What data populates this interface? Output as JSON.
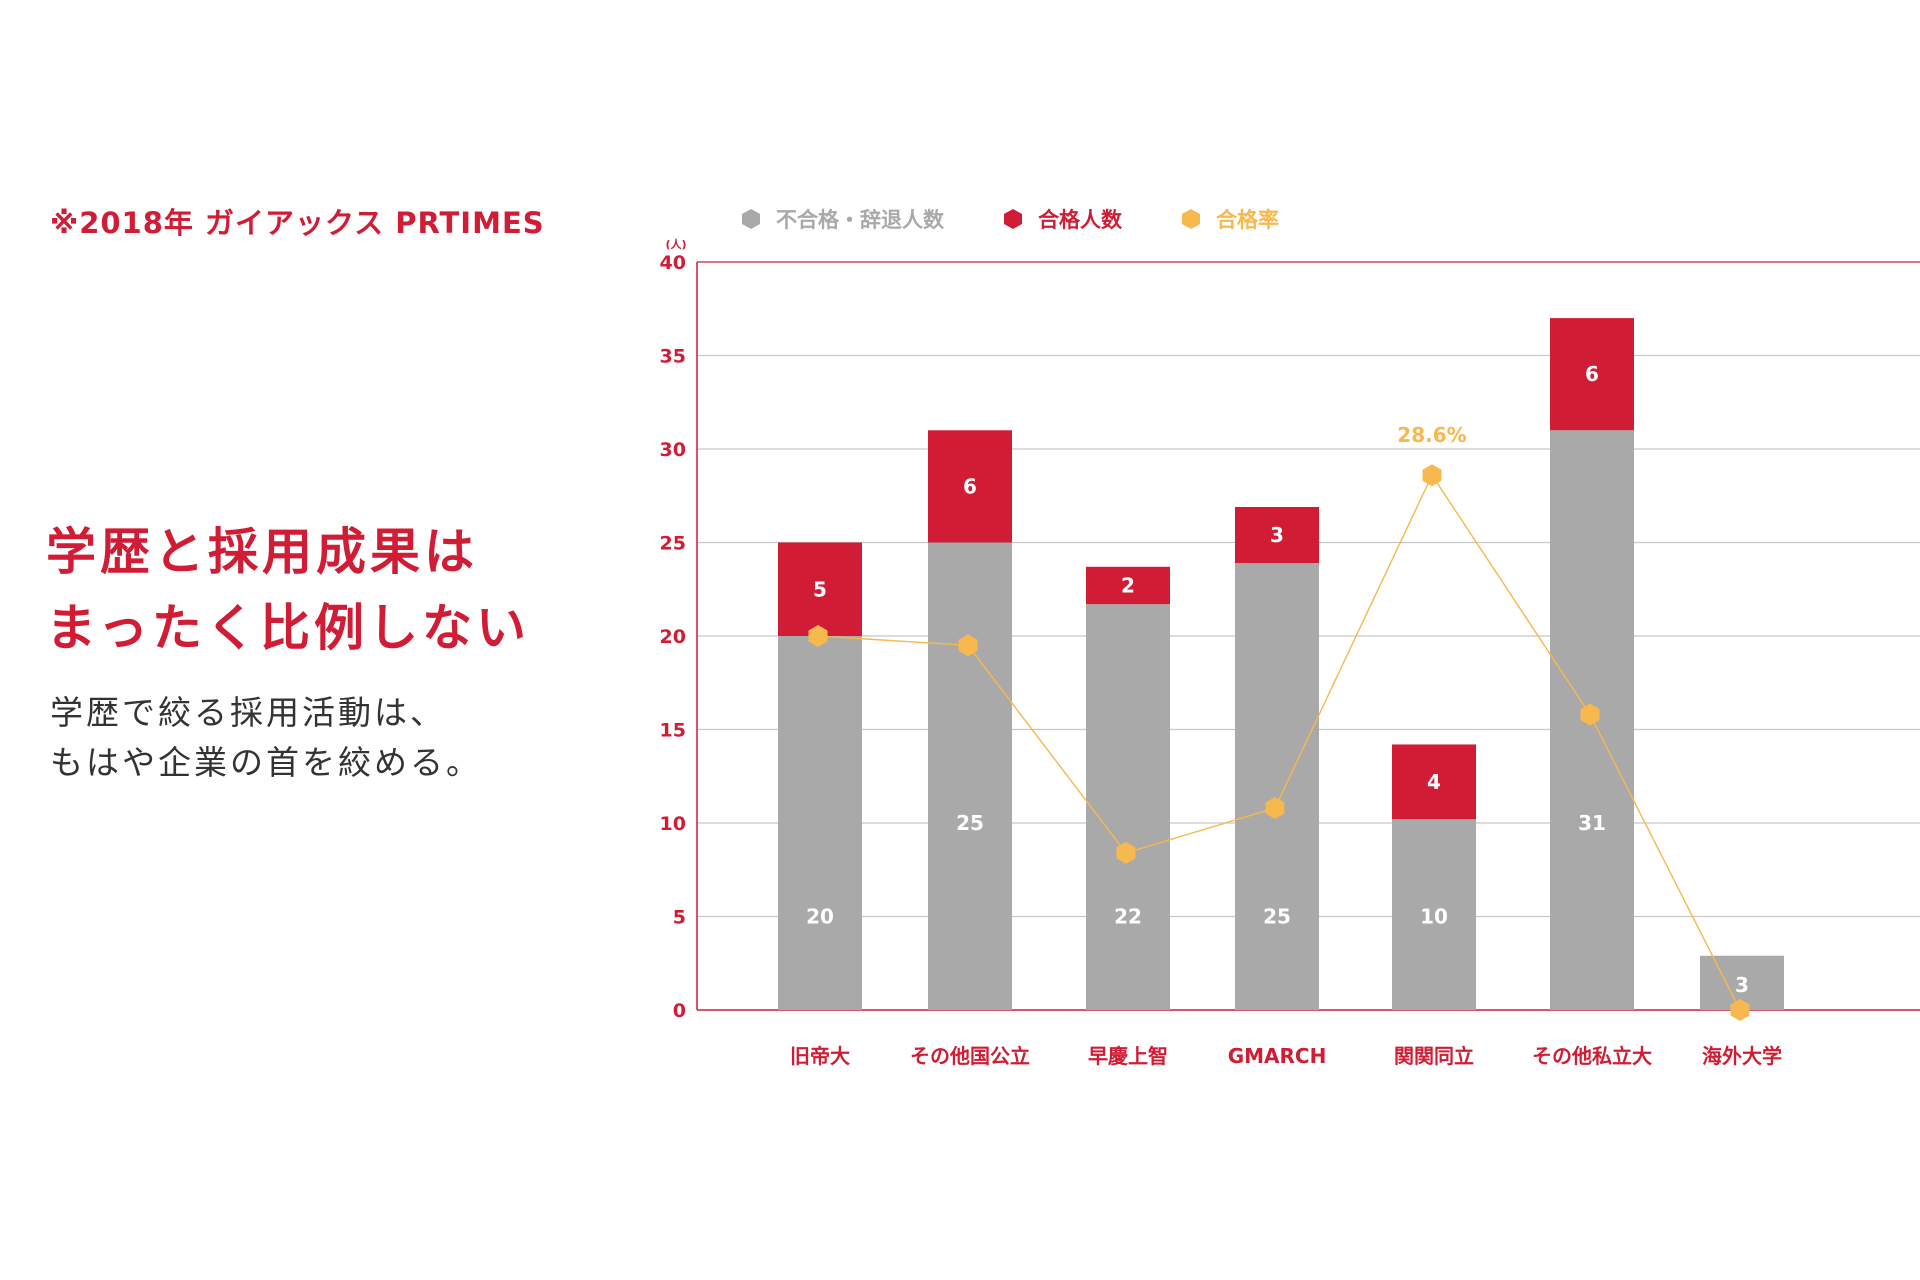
{
  "source_note": "※2018年 ガイアックス PRTIMES",
  "headline": {
    "line1": "学歴と採用成果は",
    "line2": "まったく比例しない"
  },
  "subline": {
    "line1": "学歴で絞る採用活動は、",
    "line2": "もはや企業の首を絞める。"
  },
  "colors": {
    "accent": "#d01c34",
    "gray": "#a9a9a9",
    "rate": "#f7b84e",
    "grid": "#c8c8c8"
  },
  "chart_data": {
    "type": "bar",
    "stacked": true,
    "categories": [
      "旧帝大",
      "その他国公立",
      "早慶上智",
      "GMARCH",
      "関関同立",
      "その他私立大",
      "海外大学"
    ],
    "series": [
      {
        "name": "不合格・辞退人数",
        "color": "#a9a9a9",
        "values": [
          20,
          25,
          22,
          25,
          10,
          31,
          3
        ]
      },
      {
        "name": "合格人数",
        "color": "#d01c34",
        "values": [
          5,
          6,
          2,
          3,
          4,
          6,
          0
        ]
      }
    ],
    "bar_heights": [
      20,
      25,
      21.7,
      23.9,
      10.2,
      31,
      2.9
    ],
    "line_series": {
      "name": "合格率",
      "color": "#f7b84e",
      "values": [
        20,
        19.5,
        8.4,
        10.8,
        28.6,
        15.8,
        0
      ],
      "highlight_label": "28.6%",
      "highlight_index": 4
    },
    "ylabel": "(人)",
    "ylim": [
      0,
      40
    ],
    "yticks": [
      0,
      5,
      10,
      15,
      20,
      25,
      30,
      35,
      40
    ],
    "legend_position": "top"
  }
}
